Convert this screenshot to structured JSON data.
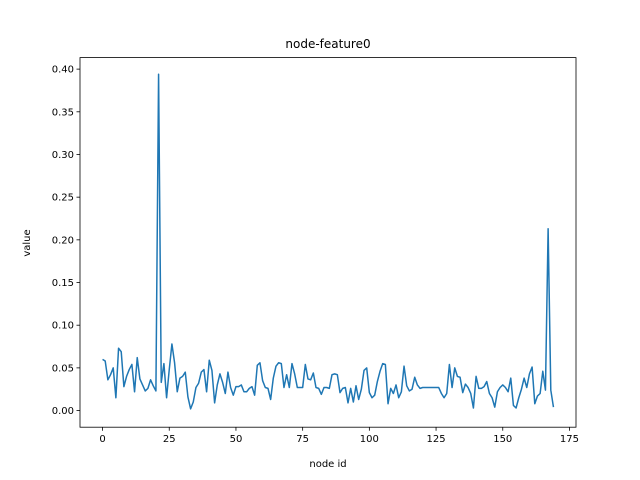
{
  "chart_data": {
    "type": "line",
    "title": "node-feature0",
    "xlabel": "node id",
    "ylabel": "value",
    "xlim": [
      -8.45,
      177.45
    ],
    "ylim": [
      -0.0195,
      0.4135
    ],
    "xticks": [
      0,
      25,
      50,
      75,
      100,
      125,
      150,
      175
    ],
    "yticks": [
      0.0,
      0.05,
      0.1,
      0.15,
      0.2,
      0.25,
      0.3,
      0.35,
      0.4
    ],
    "ytick_labels": [
      "0.00",
      "0.05",
      "0.10",
      "0.15",
      "0.20",
      "0.25",
      "0.30",
      "0.35",
      "0.40"
    ],
    "grid": false,
    "line_color": "#1f77b4",
    "series": [
      {
        "x": [
          0,
          1,
          2,
          3,
          4,
          5,
          6,
          7,
          8,
          9,
          10,
          11,
          12,
          13,
          14,
          15,
          16,
          17,
          18,
          19,
          20,
          21,
          22,
          23,
          24,
          25,
          26,
          27,
          28,
          29,
          30,
          31,
          32,
          33,
          34,
          35,
          36,
          37,
          38,
          39,
          40,
          41,
          42,
          43,
          44,
          45,
          46,
          47,
          48,
          49,
          50,
          51,
          52,
          53,
          54,
          55,
          56,
          57,
          58,
          59,
          60,
          61,
          62,
          63,
          64,
          65,
          66,
          67,
          68,
          69,
          70,
          71,
          72,
          73,
          74,
          75,
          76,
          77,
          78,
          79,
          80,
          81,
          82,
          83,
          84,
          85,
          86,
          87,
          88,
          89,
          90,
          91,
          92,
          93,
          94,
          95,
          96,
          97,
          98,
          99,
          100,
          101,
          102,
          103,
          104,
          105,
          106,
          107,
          108,
          109,
          110,
          111,
          112,
          113,
          114,
          115,
          116,
          117,
          118,
          119,
          120,
          121,
          122,
          123,
          124,
          125,
          126,
          127,
          128,
          129,
          130,
          131,
          132,
          133,
          134,
          135,
          136,
          137,
          138,
          139,
          140,
          141,
          142,
          143,
          144,
          145,
          146,
          147,
          148,
          149,
          150,
          151,
          152,
          153,
          154,
          155,
          156,
          157,
          158,
          159,
          160,
          161,
          162,
          163,
          164,
          165,
          166,
          167,
          168,
          169
        ],
        "y": [
          0.06,
          0.058,
          0.036,
          0.042,
          0.05,
          0.015,
          0.073,
          0.069,
          0.028,
          0.04,
          0.048,
          0.054,
          0.022,
          0.062,
          0.037,
          0.03,
          0.023,
          0.026,
          0.036,
          0.029,
          0.023,
          0.394,
          0.033,
          0.055,
          0.015,
          0.048,
          0.078,
          0.056,
          0.022,
          0.038,
          0.04,
          0.045,
          0.016,
          0.002,
          0.01,
          0.027,
          0.032,
          0.045,
          0.048,
          0.022,
          0.059,
          0.047,
          0.009,
          0.03,
          0.043,
          0.033,
          0.02,
          0.045,
          0.027,
          0.018,
          0.028,
          0.028,
          0.03,
          0.022,
          0.022,
          0.026,
          0.028,
          0.018,
          0.053,
          0.056,
          0.035,
          0.027,
          0.026,
          0.013,
          0.038,
          0.052,
          0.056,
          0.055,
          0.027,
          0.042,
          0.027,
          0.055,
          0.043,
          0.027,
          0.027,
          0.027,
          0.054,
          0.037,
          0.036,
          0.044,
          0.027,
          0.026,
          0.019,
          0.027,
          0.027,
          0.026,
          0.042,
          0.043,
          0.042,
          0.021,
          0.026,
          0.027,
          0.009,
          0.026,
          0.01,
          0.029,
          0.013,
          0.025,
          0.047,
          0.05,
          0.021,
          0.015,
          0.018,
          0.034,
          0.046,
          0.055,
          0.054,
          0.008,
          0.026,
          0.02,
          0.03,
          0.015,
          0.022,
          0.052,
          0.029,
          0.023,
          0.025,
          0.039,
          0.03,
          0.026,
          0.027,
          0.027,
          0.027,
          0.027,
          0.027,
          0.027,
          0.027,
          0.02,
          0.015,
          0.02,
          0.054,
          0.027,
          0.05,
          0.04,
          0.039,
          0.021,
          0.031,
          0.027,
          0.02,
          0.003,
          0.04,
          0.026,
          0.026,
          0.028,
          0.034,
          0.02,
          0.015,
          0.004,
          0.022,
          0.027,
          0.03,
          0.027,
          0.022,
          0.038,
          0.006,
          0.003,
          0.015,
          0.025,
          0.038,
          0.027,
          0.043,
          0.051,
          0.008,
          0.017,
          0.02,
          0.046,
          0.024,
          0.213,
          0.024,
          0.004
        ]
      }
    ]
  }
}
